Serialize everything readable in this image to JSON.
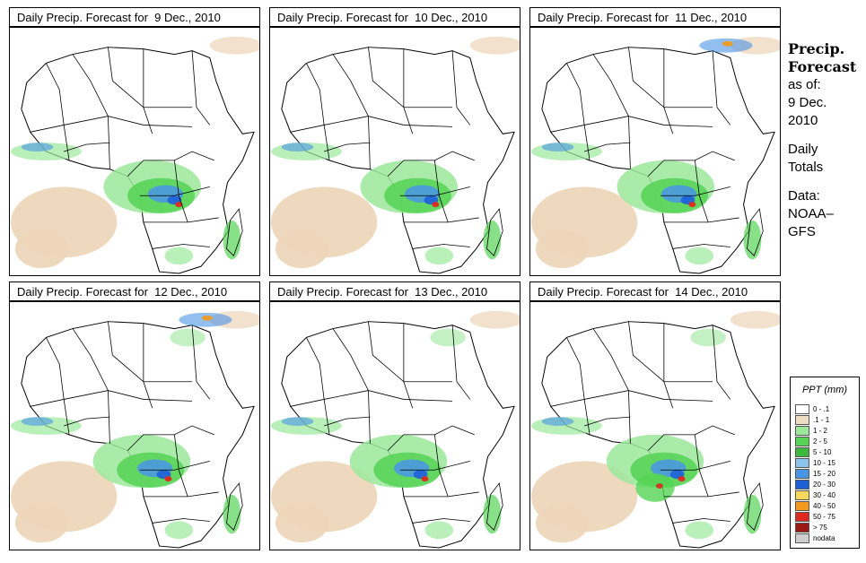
{
  "panels": [
    {
      "title": "Daily Precip. Forecast for  9 Dec., 2010"
    },
    {
      "title": "Daily Precip. Forecast for  10 Dec., 2010"
    },
    {
      "title": "Daily Precip. Forecast for  11 Dec., 2010"
    },
    {
      "title": "Daily Precip. Forecast for  12 Dec., 2010"
    },
    {
      "title": "Daily Precip. Forecast for  13 Dec., 2010"
    },
    {
      "title": "Daily Precip. Forecast for  14 Dec., 2010"
    }
  ],
  "side": {
    "heading1": "Precip.",
    "heading2": "Forecast",
    "asof": "as of:",
    "date1": "9 Dec.",
    "date2": "2010",
    "daily1": "Daily",
    "daily2": "Totals",
    "data1": "Data:",
    "data2": "NOAA–",
    "data3": "GFS"
  },
  "legend": {
    "title": "PPT (mm)",
    "items": [
      {
        "label": "0 - .1",
        "color": "#ffffff"
      },
      {
        "label": ".1 - 1",
        "color": "#f0dcc0"
      },
      {
        "label": "1 - 2",
        "color": "#9be89b"
      },
      {
        "label": "2 - 5",
        "color": "#55d455"
      },
      {
        "label": "5 - 10",
        "color": "#3fb83f"
      },
      {
        "label": "10 - 15",
        "color": "#8cc4ee"
      },
      {
        "label": "15 - 20",
        "color": "#4a94e6"
      },
      {
        "label": "20 - 30",
        "color": "#1e5fd8"
      },
      {
        "label": "30 - 40",
        "color": "#f6d85a"
      },
      {
        "label": "40 - 50",
        "color": "#f39a1c"
      },
      {
        "label": "50 - 75",
        "color": "#e0281e"
      },
      {
        "label": "> 75",
        "color": "#9c1a14"
      },
      {
        "label": "nodata",
        "color": "#cfcfcf"
      }
    ]
  },
  "colors": {
    "land": "#ffffff",
    "desert": "#ecd5b8",
    "light_green": "#9be89b",
    "green": "#55d455",
    "blue": "#4a94e6",
    "dark_blue": "#1e5fd8",
    "red": "#e0281e",
    "orange": "#f39a1c"
  }
}
